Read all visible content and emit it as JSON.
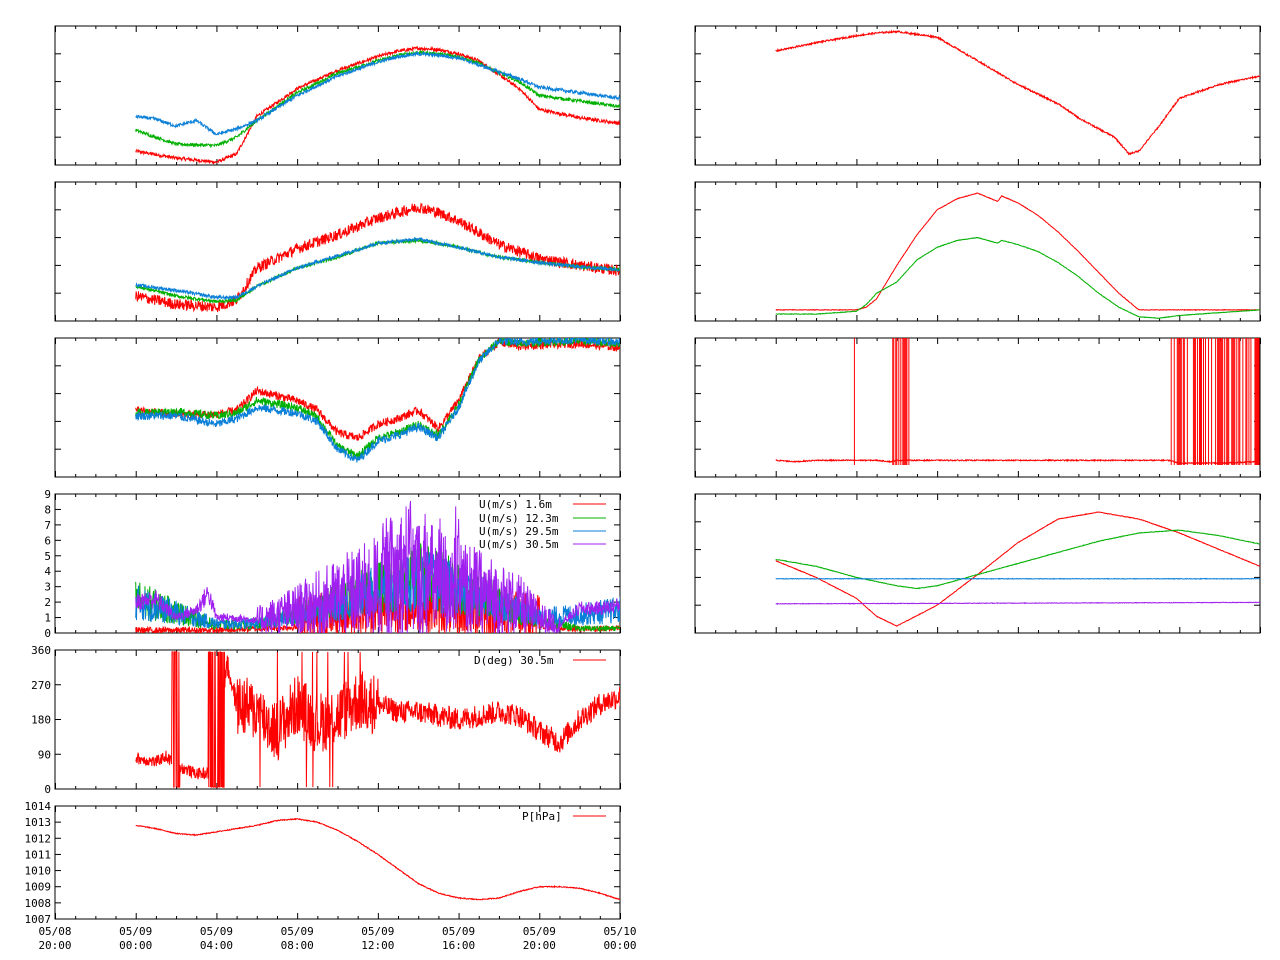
{
  "colors": {
    "red": "#ff0000",
    "green": "#00b000",
    "blue": "#0a7fd8",
    "purple": "#a020f0",
    "axis": "#000000"
  },
  "x_axis": {
    "tick_dates": [
      "05/08",
      "05/09",
      "05/09",
      "05/09",
      "05/09",
      "05/09",
      "05/09",
      "05/10"
    ],
    "tick_times": [
      "20:00",
      "00:00",
      "04:00",
      "08:00",
      "12:00",
      "16:00",
      "20:00",
      "00:00"
    ],
    "range_hours": [
      -4,
      24
    ],
    "data_start_hour": 0
  },
  "chart_data": [
    {
      "id": "L1",
      "type": "line",
      "grid": false,
      "series": [
        {
          "color": "red",
          "x_hours": [
            0,
            2,
            4,
            5,
            6,
            8,
            10,
            12,
            13,
            14,
            15,
            16,
            17,
            19,
            20,
            22,
            24
          ],
          "y": [
            0.1,
            0.05,
            0.02,
            0.08,
            0.35,
            0.55,
            0.68,
            0.78,
            0.82,
            0.84,
            0.83,
            0.8,
            0.75,
            0.55,
            0.4,
            0.34,
            0.3
          ]
        },
        {
          "color": "green",
          "x_hours": [
            0,
            2,
            4,
            5,
            6,
            8,
            10,
            12,
            13,
            14,
            15,
            16,
            17,
            19,
            20,
            22,
            24
          ],
          "y": [
            0.25,
            0.15,
            0.14,
            0.2,
            0.32,
            0.52,
            0.66,
            0.75,
            0.79,
            0.81,
            0.8,
            0.78,
            0.73,
            0.6,
            0.5,
            0.46,
            0.42
          ]
        },
        {
          "color": "blue",
          "x_hours": [
            0,
            1,
            2,
            3,
            4,
            5,
            6,
            8,
            10,
            12,
            13,
            14,
            15,
            16,
            17,
            19,
            20,
            22,
            24
          ],
          "y": [
            0.35,
            0.33,
            0.28,
            0.32,
            0.22,
            0.26,
            0.32,
            0.5,
            0.64,
            0.74,
            0.78,
            0.8,
            0.79,
            0.77,
            0.72,
            0.62,
            0.56,
            0.52,
            0.48
          ]
        }
      ]
    },
    {
      "id": "L2",
      "type": "line",
      "grid": false,
      "series": [
        {
          "color": "red",
          "x_hours": [
            0,
            2,
            4,
            5,
            6,
            8,
            10,
            12,
            14,
            15,
            16,
            18,
            20,
            22,
            24
          ],
          "y": [
            0.18,
            0.12,
            0.1,
            0.15,
            0.38,
            0.52,
            0.62,
            0.74,
            0.82,
            0.78,
            0.72,
            0.55,
            0.45,
            0.4,
            0.36
          ]
        },
        {
          "color": "green",
          "x_hours": [
            0,
            2,
            4,
            5,
            6,
            8,
            10,
            12,
            14,
            15,
            16,
            18,
            20,
            22,
            24
          ],
          "y": [
            0.25,
            0.18,
            0.14,
            0.15,
            0.25,
            0.38,
            0.46,
            0.56,
            0.58,
            0.56,
            0.53,
            0.46,
            0.42,
            0.39,
            0.37
          ]
        },
        {
          "color": "blue",
          "x_hours": [
            0,
            2,
            4,
            5,
            6,
            8,
            10,
            12,
            14,
            15,
            16,
            18,
            20,
            22,
            24
          ],
          "y": [
            0.26,
            0.22,
            0.17,
            0.17,
            0.25,
            0.38,
            0.47,
            0.56,
            0.59,
            0.56,
            0.53,
            0.46,
            0.42,
            0.39,
            0.37
          ]
        }
      ]
    },
    {
      "id": "L3",
      "type": "line",
      "grid": false,
      "series": [
        {
          "color": "red",
          "x_hours": [
            0,
            2,
            4,
            5,
            6,
            8,
            9,
            10,
            11,
            12,
            13,
            14,
            15,
            16,
            17,
            18,
            19,
            20,
            22,
            24
          ],
          "y": [
            0.48,
            0.45,
            0.45,
            0.48,
            0.62,
            0.55,
            0.48,
            0.32,
            0.28,
            0.38,
            0.42,
            0.48,
            0.35,
            0.55,
            0.85,
            0.97,
            0.94,
            0.95,
            0.96,
            0.93
          ]
        },
        {
          "color": "green",
          "x_hours": [
            0,
            2,
            4,
            5,
            6,
            8,
            9,
            10,
            11,
            12,
            13,
            14,
            15,
            16,
            17,
            18,
            19,
            20,
            22,
            24
          ],
          "y": [
            0.46,
            0.47,
            0.44,
            0.46,
            0.55,
            0.5,
            0.43,
            0.22,
            0.15,
            0.28,
            0.32,
            0.38,
            0.3,
            0.52,
            0.84,
            0.98,
            0.96,
            0.97,
            0.98,
            0.96
          ]
        },
        {
          "color": "blue",
          "x_hours": [
            0,
            2,
            4,
            5,
            6,
            8,
            9,
            10,
            11,
            12,
            13,
            14,
            15,
            16,
            17,
            18,
            19,
            20,
            22,
            24
          ],
          "y": [
            0.44,
            0.44,
            0.38,
            0.42,
            0.5,
            0.46,
            0.4,
            0.2,
            0.12,
            0.26,
            0.3,
            0.36,
            0.28,
            0.5,
            0.83,
            0.98,
            0.97,
            0.98,
            0.99,
            0.97
          ]
        }
      ]
    },
    {
      "id": "L4",
      "type": "line",
      "grid": false,
      "yticks": [
        "0",
        "1",
        "2",
        "3",
        "4",
        "5",
        "6",
        "7",
        "8",
        "9"
      ],
      "ylim": [
        0,
        9
      ],
      "series": [
        {
          "name": "U(m/s)  1.6m",
          "color": "red",
          "x_hours": [
            0,
            4,
            6,
            8,
            10,
            12,
            14,
            16,
            18,
            20,
            22,
            24
          ],
          "y": [
            0.1,
            0.1,
            0.2,
            0.3,
            0.6,
            0.9,
            1.0,
            0.8,
            0.6,
            0.3,
            0.2,
            0.2
          ]
        },
        {
          "name": "U(m/s) 12.3m",
          "color": "green",
          "x_hours": [
            0,
            4,
            6,
            8,
            10,
            12,
            14,
            16,
            18,
            20,
            22,
            24
          ],
          "y": [
            2.2,
            0.5,
            0.6,
            1.2,
            2.0,
            3.0,
            3.8,
            3.0,
            2.0,
            0.8,
            0.3,
            0.3
          ]
        },
        {
          "name": "U(m/s) 29.5m",
          "color": "blue",
          "x_hours": [
            0,
            4,
            6,
            8,
            10,
            12,
            14,
            16,
            18,
            20,
            22,
            24
          ],
          "y": [
            2.0,
            0.6,
            0.6,
            1.1,
            1.9,
            2.8,
            3.5,
            2.8,
            1.9,
            1.0,
            1.2,
            1.5
          ]
        },
        {
          "name": "U(m/s) 30.5m",
          "color": "purple",
          "x_hours": [
            0,
            1,
            2,
            3,
            3.6,
            4,
            5,
            6,
            8,
            10,
            12,
            13.5,
            14,
            16,
            18,
            19,
            20,
            21,
            22,
            23,
            24
          ],
          "y": [
            2.0,
            2.2,
            1.0,
            1.5,
            2.6,
            1.0,
            1.0,
            0.8,
            1.5,
            2.3,
            3.0,
            4.2,
            3.6,
            3.0,
            2.2,
            1.8,
            1.0,
            0.5,
            1.6,
            1.6,
            1.8
          ]
        }
      ],
      "peaks_30m": 8.5
    },
    {
      "id": "L5",
      "type": "line",
      "grid": false,
      "yticks": [
        "0",
        "90",
        "180",
        "270",
        "360"
      ],
      "ylim": [
        0,
        360
      ],
      "series": [
        {
          "name": "D(deg)  30.5m",
          "color": "red",
          "x_hours": [
            0,
            1,
            1.5,
            2,
            3,
            4,
            4.5,
            5,
            6,
            7,
            8,
            9,
            10,
            11,
            12,
            13,
            14,
            15,
            16,
            17,
            18,
            19,
            20,
            21,
            22,
            23,
            24
          ],
          "y": [
            80,
            70,
            85,
            60,
            40,
            40,
            330,
            220,
            200,
            150,
            220,
            170,
            190,
            230,
            220,
            200,
            200,
            190,
            180,
            190,
            200,
            190,
            150,
            120,
            180,
            220,
            240
          ]
        }
      ]
    },
    {
      "id": "L6",
      "type": "line",
      "grid": false,
      "yticks": [
        "1007",
        "1008",
        "1009",
        "1010",
        "1011",
        "1012",
        "1013",
        "1014"
      ],
      "ylim": [
        1007,
        1014
      ],
      "series": [
        {
          "name": "P[hPa]",
          "color": "red",
          "x_hours": [
            0,
            1,
            2,
            3,
            4,
            5,
            6,
            7,
            8,
            9,
            10,
            11,
            12,
            13,
            14,
            15,
            16,
            17,
            18,
            19,
            20,
            21,
            22,
            23,
            24
          ],
          "y": [
            1012.8,
            1012.6,
            1012.3,
            1012.2,
            1012.4,
            1012.6,
            1012.8,
            1013.1,
            1013.2,
            1013.0,
            1012.5,
            1011.8,
            1011.0,
            1010.1,
            1009.2,
            1008.6,
            1008.3,
            1008.2,
            1008.3,
            1008.7,
            1009.0,
            1009.0,
            1008.9,
            1008.6,
            1008.2
          ]
        }
      ]
    },
    {
      "id": "R1",
      "type": "line",
      "grid": false,
      "series": [
        {
          "color": "red",
          "x_hours": [
            0,
            2,
            4,
            5,
            6,
            8,
            10,
            12,
            14,
            15,
            16,
            16.8,
            17.5,
            18,
            19,
            20,
            22,
            24
          ],
          "y": [
            0.82,
            0.88,
            0.93,
            0.95,
            0.96,
            0.92,
            0.75,
            0.58,
            0.44,
            0.34,
            0.26,
            0.2,
            0.08,
            0.1,
            0.28,
            0.48,
            0.58,
            0.64
          ]
        }
      ]
    },
    {
      "id": "R2",
      "type": "line",
      "grid": false,
      "series": [
        {
          "color": "red",
          "x_hours": [
            0,
            2,
            4,
            4.5,
            5,
            6,
            7,
            8,
            9,
            10,
            11,
            11.2,
            12,
            13,
            14,
            15,
            16,
            17,
            18,
            20,
            22,
            24
          ],
          "y": [
            0.08,
            0.08,
            0.08,
            0.1,
            0.16,
            0.4,
            0.62,
            0.8,
            0.88,
            0.92,
            0.86,
            0.9,
            0.85,
            0.76,
            0.64,
            0.5,
            0.35,
            0.2,
            0.08,
            0.08,
            0.08,
            0.08
          ]
        },
        {
          "color": "green",
          "x_hours": [
            0,
            2,
            4,
            4.5,
            5,
            6,
            7,
            8,
            9,
            10,
            11,
            11.2,
            12,
            13,
            14,
            15,
            16,
            17,
            18,
            19,
            20,
            22,
            24
          ],
          "y": [
            0.05,
            0.05,
            0.07,
            0.12,
            0.2,
            0.28,
            0.44,
            0.53,
            0.58,
            0.6,
            0.56,
            0.58,
            0.55,
            0.5,
            0.42,
            0.32,
            0.2,
            0.1,
            0.03,
            0.02,
            0.04,
            0.06,
            0.08
          ]
        }
      ]
    },
    {
      "id": "R3",
      "type": "line",
      "grid": false,
      "series": [
        {
          "color": "red",
          "x_hours": [
            0,
            1,
            2,
            3,
            4,
            5,
            5.7,
            6,
            8,
            10,
            12,
            14,
            16,
            18,
            19.5,
            20,
            22,
            24
          ],
          "y": [
            0.12,
            0.11,
            0.12,
            0.12,
            0.12,
            0.12,
            0.11,
            0.12,
            0.12,
            0.12,
            0.12,
            0.12,
            0.12,
            0.12,
            0.12,
            0.1,
            0.1,
            0.11
          ]
        }
      ],
      "spike_bands_hours": [
        [
          3.9,
          3.95
        ],
        [
          5.8,
          6.6
        ],
        [
          19.5,
          24
        ]
      ]
    },
    {
      "id": "R4",
      "type": "line",
      "grid": false,
      "series": [
        {
          "color": "red",
          "x_hours": [
            0,
            2,
            4,
            5,
            6,
            8,
            10,
            12,
            14,
            16,
            18,
            20,
            22,
            24
          ],
          "y": [
            0.52,
            0.4,
            0.25,
            0.12,
            0.05,
            0.2,
            0.42,
            0.65,
            0.82,
            0.87,
            0.82,
            0.72,
            0.6,
            0.48
          ]
        },
        {
          "color": "green",
          "x_hours": [
            0,
            2,
            4,
            6,
            7,
            8,
            10,
            12,
            14,
            16,
            18,
            20,
            22,
            24
          ],
          "y": [
            0.53,
            0.48,
            0.4,
            0.34,
            0.32,
            0.34,
            0.42,
            0.5,
            0.58,
            0.66,
            0.72,
            0.74,
            0.7,
            0.64
          ]
        },
        {
          "color": "blue",
          "x_hours": [
            0,
            24
          ],
          "y": [
            0.39,
            0.39
          ]
        },
        {
          "color": "purple",
          "x_hours": [
            0,
            24
          ],
          "y": [
            0.21,
            0.22
          ]
        }
      ]
    }
  ]
}
